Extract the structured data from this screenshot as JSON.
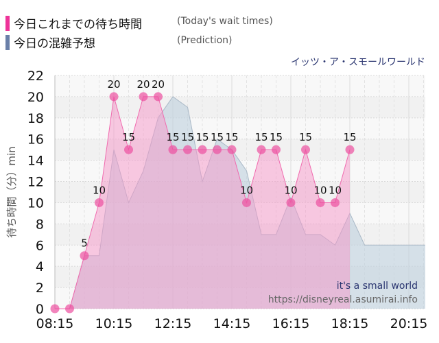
{
  "legend": [
    {
      "label": "今日これまでの待ち時間",
      "sub": "(Today's wait times)",
      "color": "#ee3399"
    },
    {
      "label": "今日の混雑予想",
      "sub": "(Prediction)",
      "color": "#6a7fa8"
    }
  ],
  "park_label": "イッツ・ア・スモールワールド",
  "watermark": {
    "title": "it's a small world",
    "url": "https://disneyreal.asumirai.info"
  },
  "chart_data": {
    "type": "area",
    "title": "",
    "ylabel": "待ち時間（分）min",
    "ylim": [
      0,
      22
    ],
    "yticks": [
      0,
      2,
      4,
      6,
      8,
      10,
      12,
      14,
      16,
      18,
      20,
      22
    ],
    "xticks": [
      "08:15",
      "10:15",
      "12:15",
      "14:15",
      "16:15",
      "18:15",
      "20:15"
    ],
    "x_start": "08:15",
    "interval_min": 30,
    "series": [
      {
        "name": "Today's wait times",
        "values": [
          0,
          0,
          5,
          10,
          20,
          15,
          20,
          20,
          15,
          15,
          15,
          15,
          15,
          10,
          15,
          15,
          10,
          15,
          10,
          10,
          15
        ]
      },
      {
        "name": "Prediction",
        "values": [
          0,
          0,
          5,
          5,
          15,
          10,
          13,
          18,
          20,
          19,
          12,
          16,
          15,
          13,
          7,
          7,
          10.5,
          7,
          7,
          6,
          9,
          6,
          6,
          6,
          6,
          6,
          6,
          6
        ]
      }
    ]
  }
}
